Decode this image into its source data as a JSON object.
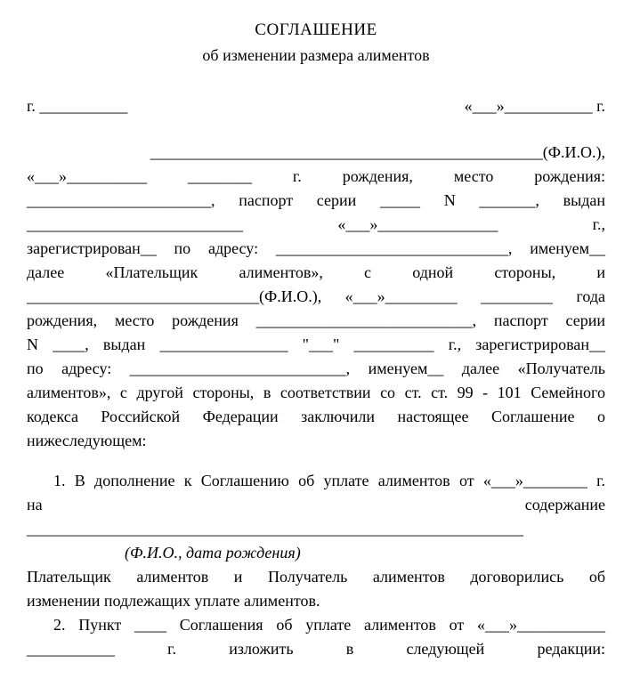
{
  "title": {
    "main": "СОГЛАШЕНИЕ",
    "sub": "об изменении размера алиментов"
  },
  "cityDate": {
    "left": "г. ___________",
    "right": "«___»___________ г."
  },
  "preamble": {
    "l1": "_________________________________________________(Ф.И.О.),",
    "l2": "«___»__________ ________ г.     рождения,     место     рождения:",
    "l3": "_______________________, паспорт серии _____ N _______, выдан",
    "l4": "___________________________            «___»_______________           г.,",
    "l5": "зарегистрирован__ по адресу: _____________________________, именуем__",
    "l6": "далее      «Плательщик      алиментов»,      с      одной      стороны,      и",
    "l7": "_____________________________(Ф.И.О.), «___»_________ _________ года",
    "l8": "рождения, место рождения ___________________________, паспорт серии",
    "l9": "N ____, выдан ________________ \"___\" __________ г., зарегистрирован__",
    "l10": "по адресу: ___________________________, именуем__ далее «Получатель",
    "l11": "алиментов», с  другой   стороны,  в  соответствии со ст. ст. 99 - 101 Семейного",
    "l12": "кодекса   Российской     Федерации    заключили  настоящее  Соглашение  о",
    "l13": "нижеследующем:"
  },
  "clause1": {
    "l1": "1. В дополнение к Соглашению об уплате алиментов от «___»________ г.",
    "l2": "на                                                                                                           содержание",
    "l3": "______________________________________________________________"
  },
  "fioNote": "(Ф.И.О., дата рождения)",
  "clause1b": {
    "l1": "Плательщик    алиментов    и    Получатель    алиментов    договорились    об",
    "l2": "изменении подлежащих уплате алиментов."
  },
  "clause2": {
    "l1": "2. Пункт  ____  Соглашения об уплате алиментов от «___»___________",
    "l2": "___________       г.       изложить       в       следующей       редакции:"
  },
  "typography": {
    "font_family": "Times New Roman",
    "base_fontsize": 18,
    "title_fontsize": 19,
    "text_color": "#000000",
    "background_color": "#ffffff",
    "line_height": 1.5,
    "text_align": "justify"
  }
}
